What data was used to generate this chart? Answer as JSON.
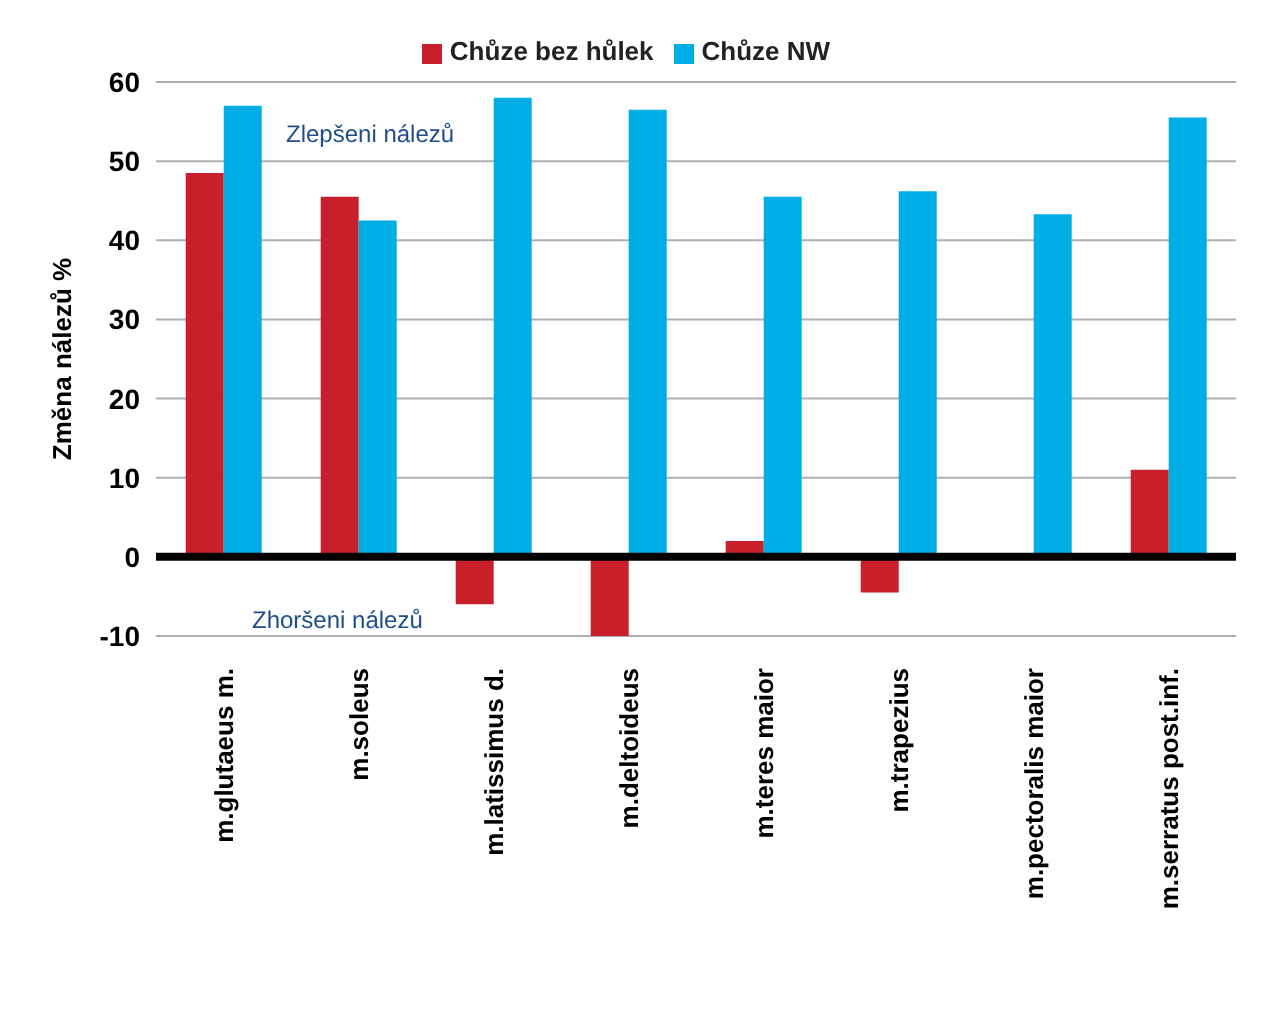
{
  "chart_data": {
    "type": "bar",
    "categories": [
      "m.glutaeus m.",
      "m.soleus",
      "m.latissimus d.",
      "m.deltoideus",
      "m.teres maior",
      "m.trapezius",
      "m.pectoralis maior",
      "m.serratus post.inf."
    ],
    "series": [
      {
        "name": "Chůze bez hůlek",
        "color": "#c8202a",
        "values": [
          48.5,
          45.5,
          -6,
          -10,
          2,
          -4.5,
          0,
          11
        ]
      },
      {
        "name": "Chůze NW",
        "color": "#00aee6",
        "values": [
          57,
          42.5,
          58,
          56.5,
          45.5,
          46.2,
          43.3,
          55.5
        ]
      }
    ],
    "ylabel": "Změna nálezů  %",
    "ylim": [
      -10,
      60
    ],
    "yticks": [
      -10,
      0,
      10,
      20,
      30,
      40,
      50,
      60
    ],
    "grid": "y",
    "legend": "top",
    "ref_lines": [
      {
        "axis": "y",
        "value": 0,
        "color": "#000000"
      }
    ],
    "annotations": [
      "Zlepšeni nálezů",
      "Zhoršeni nálezů"
    ]
  }
}
